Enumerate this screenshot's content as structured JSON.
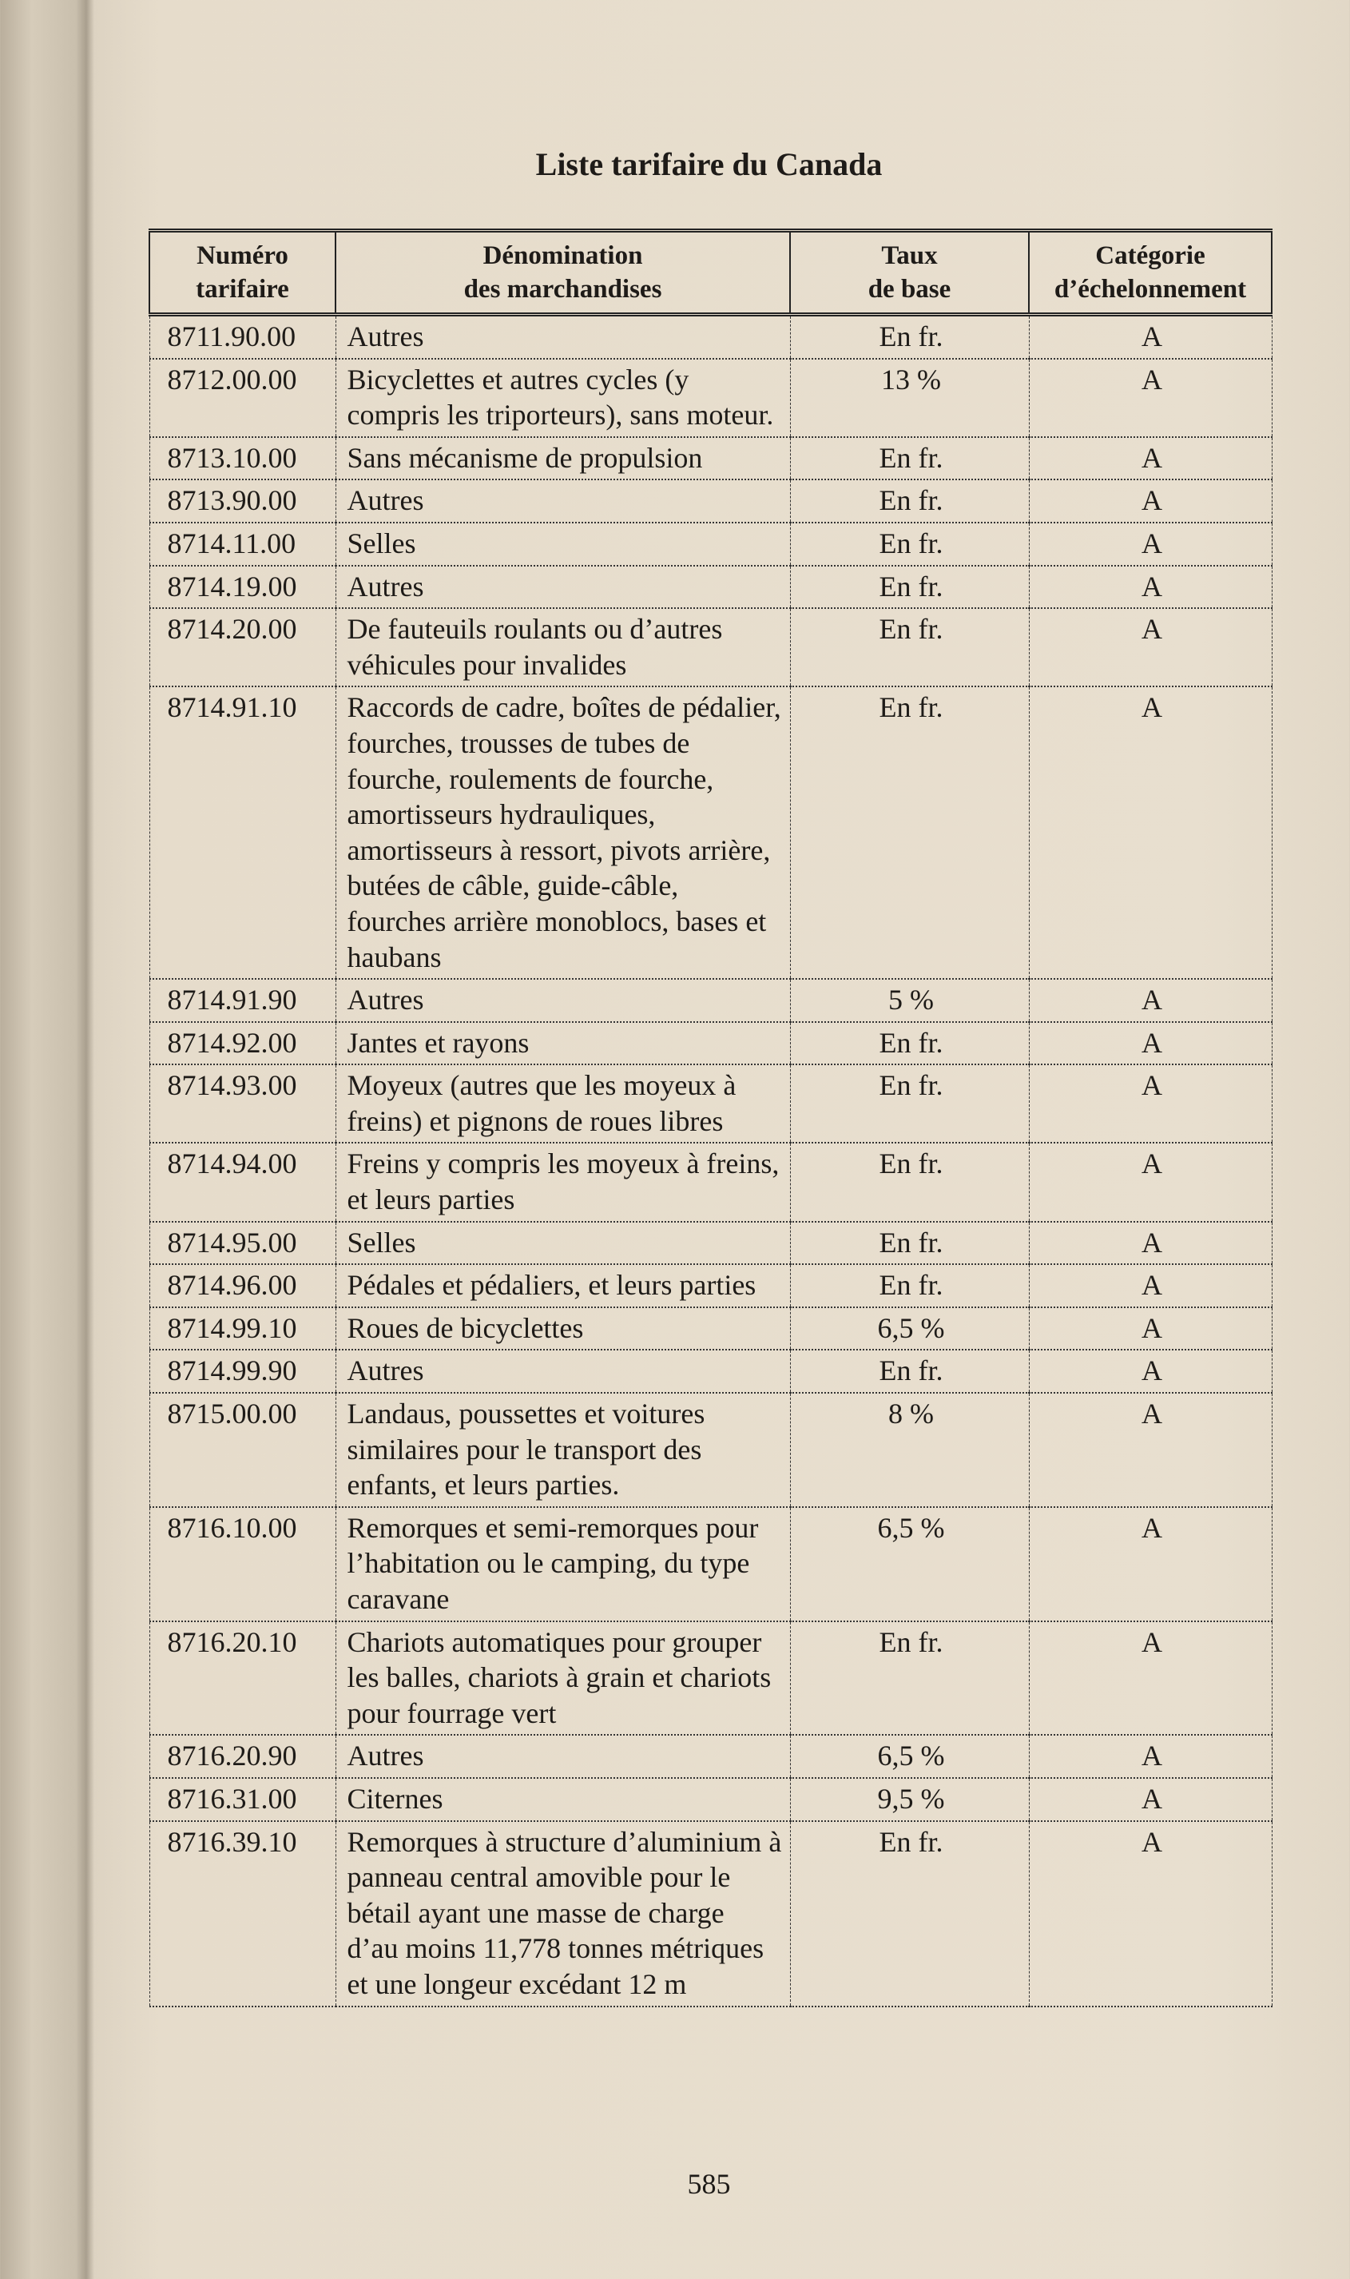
{
  "title": "Liste tarifaire du Canada",
  "headers": [
    "Numéro tarifaire",
    "Dénomination des marchandises",
    "Taux de base",
    "Catégorie d’échelonnement"
  ],
  "header_lines": [
    [
      "Numéro",
      "tarifaire"
    ],
    [
      "Dénomination",
      "des marchandises"
    ],
    [
      "Taux",
      "de base"
    ],
    [
      "Catégorie",
      "d’échelonnement"
    ]
  ],
  "rows": [
    {
      "num": "8711.90.00",
      "desc": "Autres",
      "rate": "En fr.",
      "cat": "A"
    },
    {
      "num": "8712.00.00",
      "desc": "Bicyclettes et autres cycles (y compris les triporteurs), sans moteur.",
      "rate": "13 %",
      "cat": "A"
    },
    {
      "num": "8713.10.00",
      "desc": "Sans mécanisme de propulsion",
      "rate": "En fr.",
      "cat": "A"
    },
    {
      "num": "8713.90.00",
      "desc": "Autres",
      "rate": "En fr.",
      "cat": "A"
    },
    {
      "num": "8714.11.00",
      "desc": "Selles",
      "rate": "En fr.",
      "cat": "A"
    },
    {
      "num": "8714.19.00",
      "desc": "Autres",
      "rate": "En fr.",
      "cat": "A"
    },
    {
      "num": "8714.20.00",
      "desc": "De fauteuils roulants ou d’autres véhicules pour invalides",
      "rate": "En fr.",
      "cat": "A"
    },
    {
      "num": "8714.91.10",
      "desc": "Raccords de cadre, boîtes de pédalier, fourches, trousses de tubes de fourche, roulements de fourche, amortisseurs hydrauliques, amortisseurs à ressort, pivots arrière, butées de câble, guide-câble, fourches arrière monoblocs, bases et haubans",
      "rate": "En fr.",
      "cat": "A"
    },
    {
      "num": "8714.91.90",
      "desc": "Autres",
      "rate": "5 %",
      "cat": "A"
    },
    {
      "num": "8714.92.00",
      "desc": "Jantes et rayons",
      "rate": "En fr.",
      "cat": "A"
    },
    {
      "num": "8714.93.00",
      "desc": "Moyeux (autres que les moyeux à freins) et pignons de roues libres",
      "rate": "En fr.",
      "cat": "A"
    },
    {
      "num": "8714.94.00",
      "desc": "Freins y compris les moyeux à freins, et leurs parties",
      "rate": "En fr.",
      "cat": "A"
    },
    {
      "num": "8714.95.00",
      "desc": "Selles",
      "rate": "En fr.",
      "cat": "A"
    },
    {
      "num": "8714.96.00",
      "desc": "Pédales et pédaliers, et leurs parties",
      "rate": "En fr.",
      "cat": "A"
    },
    {
      "num": "8714.99.10",
      "desc": "Roues de bicyclettes",
      "rate": "6,5 %",
      "cat": "A"
    },
    {
      "num": "8714.99.90",
      "desc": "Autres",
      "rate": "En fr.",
      "cat": "A"
    },
    {
      "num": "8715.00.00",
      "desc": "Landaus, poussettes et voitures similaires pour le transport des enfants, et leurs parties.",
      "rate": "8 %",
      "cat": "A"
    },
    {
      "num": "8716.10.00",
      "desc": "Remorques et semi-remorques pour l’habitation ou le camping, du type caravane",
      "rate": "6,5 %",
      "cat": "A"
    },
    {
      "num": "8716.20.10",
      "desc": "Chariots automatiques pour grouper les balles, chariots à grain et chariots pour fourrage vert",
      "rate": "En fr.",
      "cat": "A"
    },
    {
      "num": "8716.20.90",
      "desc": "Autres",
      "rate": "6,5 %",
      "cat": "A"
    },
    {
      "num": "8716.31.00",
      "desc": "Citernes",
      "rate": "9,5 %",
      "cat": "A"
    },
    {
      "num": "8716.39.10",
      "desc": "Remorques à structure d’aluminium à panneau central amovible pour le bétail ayant une masse de charge d’au moins 11,778 tonnes métriques et une longeur excédant 12 m",
      "rate": "En fr.",
      "cat": "A"
    }
  ],
  "page_number": "585"
}
